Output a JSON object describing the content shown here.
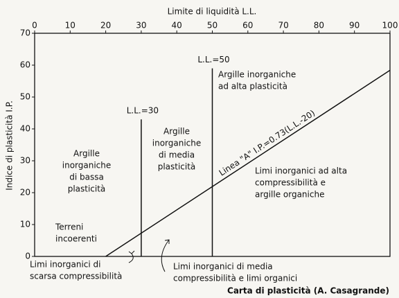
{
  "chart_data": {
    "type": "line",
    "title": "Carta di plasticità (A. Casagrande)",
    "x_label": "Limite di liquidità L.L.",
    "y_label": "Indice di plasticità I.P.",
    "xlim": [
      0,
      100
    ],
    "ylim": [
      0,
      70
    ],
    "xticks": [
      0,
      10,
      20,
      30,
      40,
      50,
      60,
      70,
      80,
      90,
      100
    ],
    "yticks": [
      0,
      10,
      20,
      30,
      40,
      50,
      60,
      70
    ],
    "color": "#111111",
    "series": [
      {
        "name": "Linea \"A\" I.P.=0.73(L.L.-20)",
        "x": [
          20,
          100
        ],
        "values": [
          0,
          58.4
        ]
      },
      {
        "name": "L.L.=30",
        "x": [
          30,
          30
        ],
        "values": [
          0,
          43
        ]
      },
      {
        "name": "L.L.=50",
        "x": [
          50,
          50
        ],
        "values": [
          0,
          59
        ]
      }
    ],
    "annotations": [
      [
        "Argille",
        "inorganiche",
        "di bassa",
        "plasticità"
      ],
      [
        "Argille",
        "inorganiche",
        "di media",
        "plasticità"
      ],
      [
        "Argille inorganiche",
        "ad alta plasticità"
      ],
      [
        "Limi inorganici ad alta",
        "compressibilità e",
        "argille organiche"
      ],
      [
        "Terreni",
        "incoerenti"
      ],
      [
        "Limi inorganici di",
        "scarsa compressibilità"
      ],
      [
        "Limi inorganici di media",
        "compressibilità e limi organici"
      ]
    ]
  }
}
